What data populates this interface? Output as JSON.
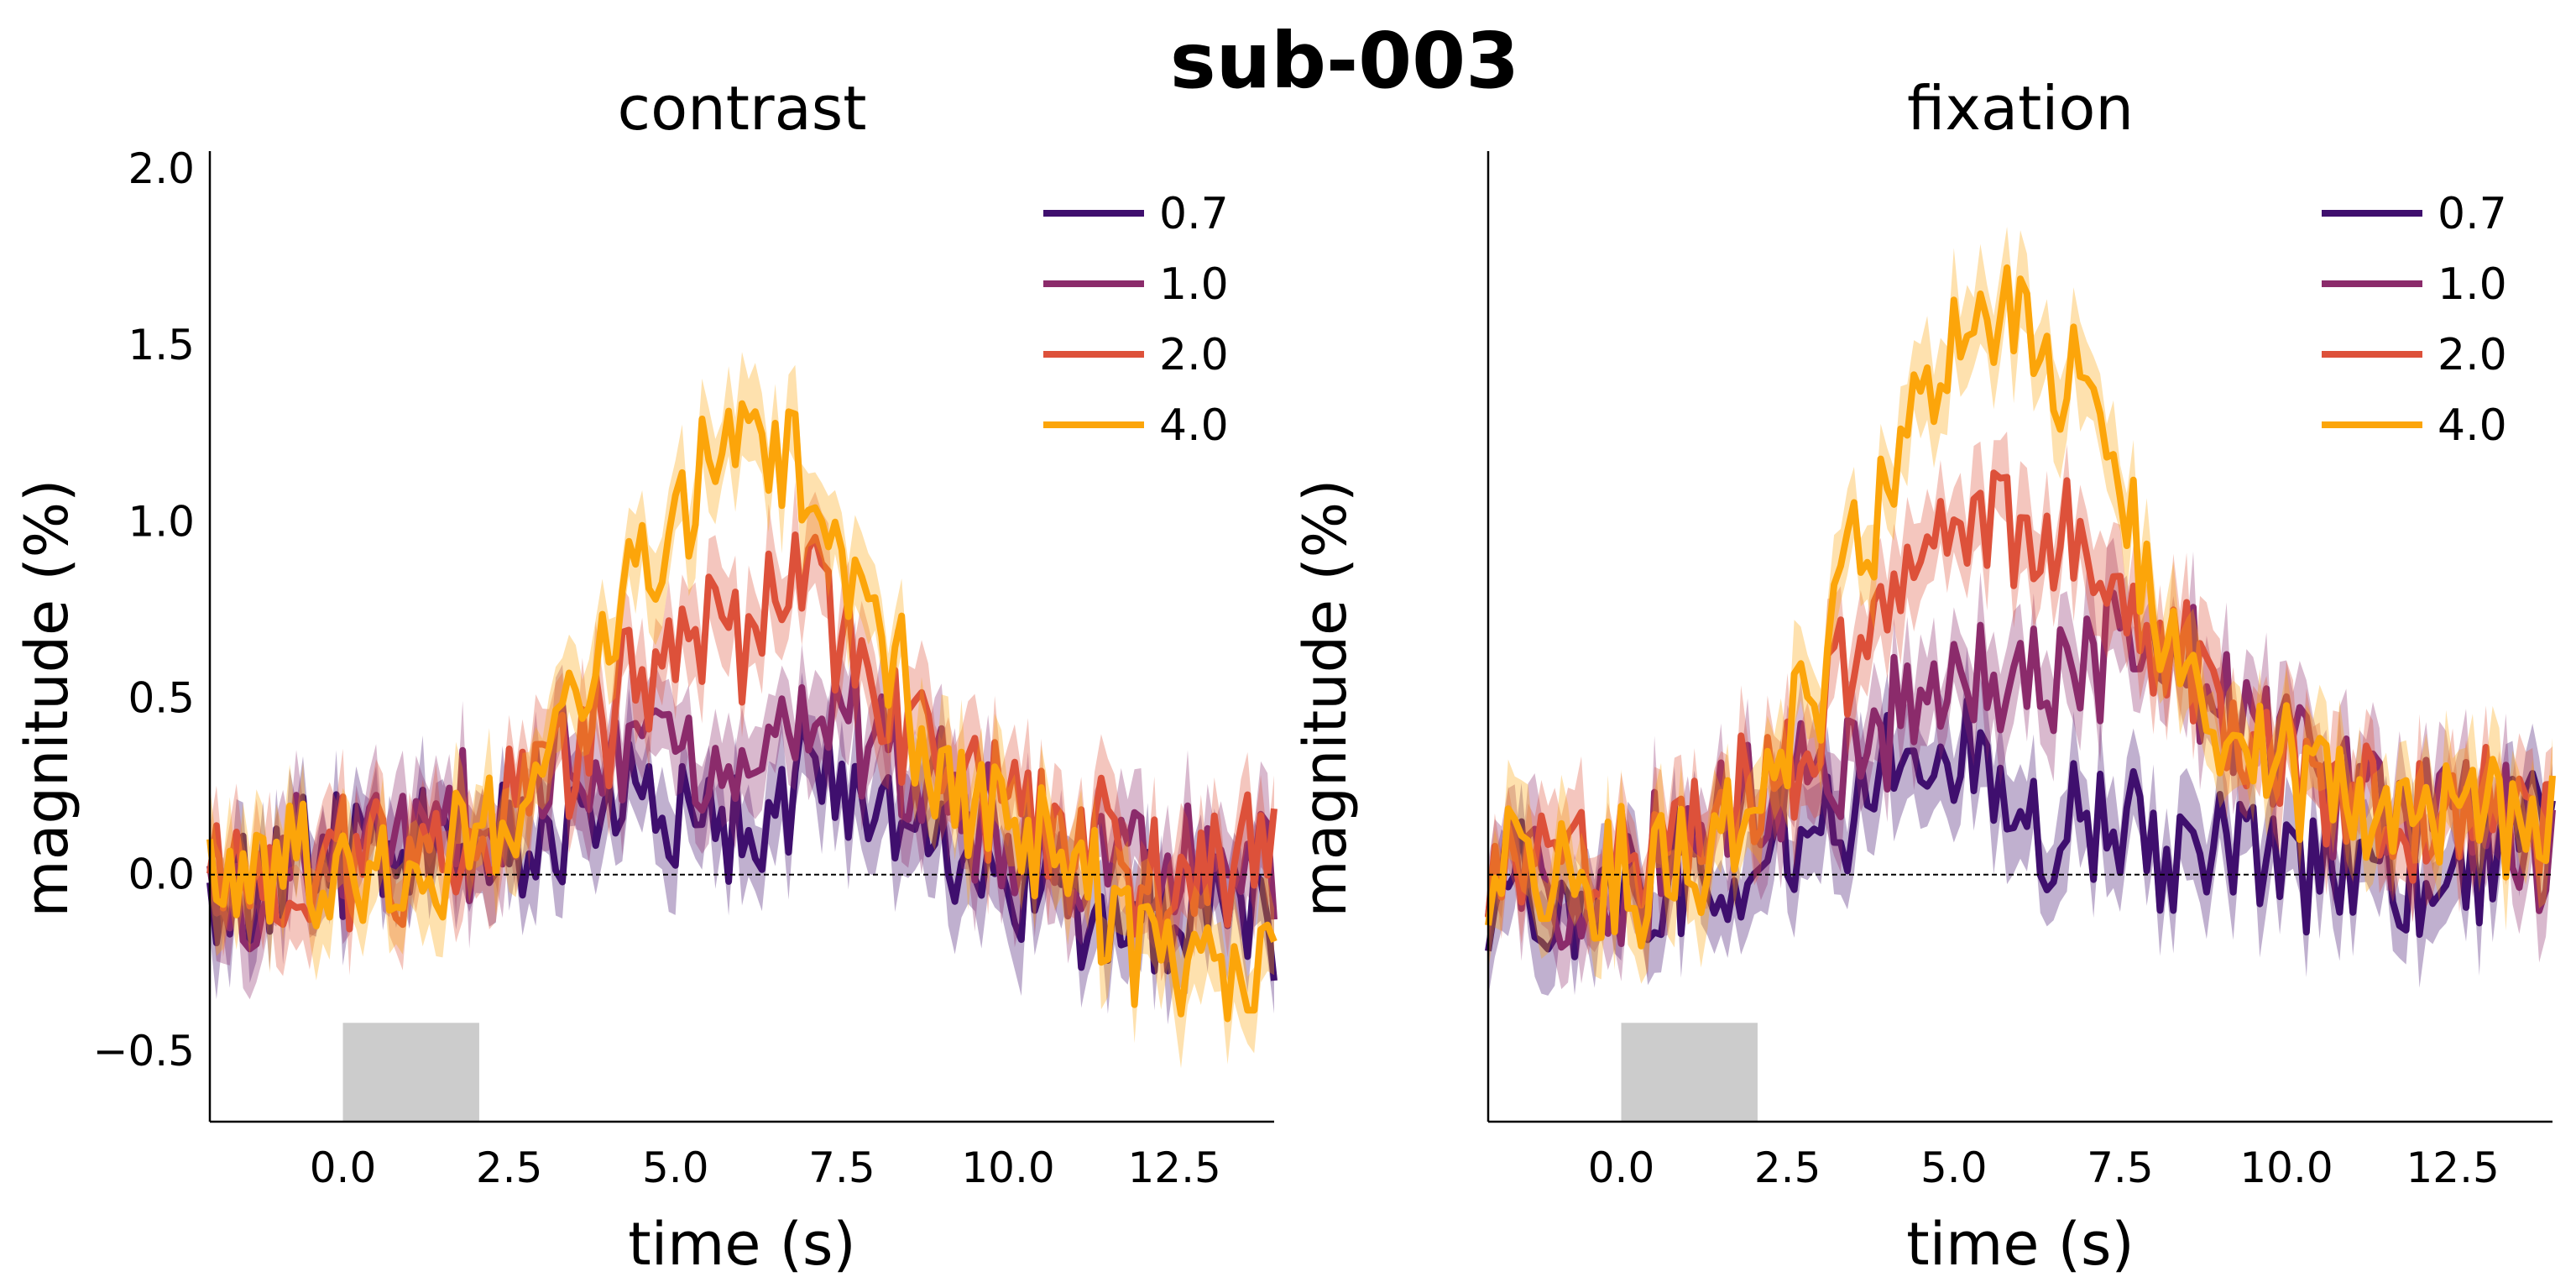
{
  "figure": {
    "title": "sub-003"
  },
  "chart_data": [
    {
      "type": "line",
      "title": "contrast",
      "xlabel": "time (s)",
      "ylabel": "magnitude (%)",
      "xlim": [
        -2.0,
        14.0
      ],
      "ylim": [
        -0.7,
        2.05
      ],
      "xticks": [
        0.0,
        2.5,
        5.0,
        7.5,
        10.0,
        12.5
      ],
      "xtick_labels": [
        "0.0",
        "2.5",
        "5.0",
        "7.5",
        "10.0",
        "12.5"
      ],
      "yticks": [
        -0.5,
        0.0,
        0.5,
        1.0,
        1.5,
        2.0
      ],
      "ytick_labels": [
        "−0.5",
        "0.0",
        "0.5",
        "1.0",
        "1.5",
        "2.0"
      ],
      "show_ytick_labels": true,
      "stimulus_block": [
        0.0,
        2.05
      ],
      "baseline": 0.0,
      "legend_position": "top-right",
      "grid": false,
      "x": [
        -2,
        -1,
        0,
        1,
        2,
        3,
        4,
        5,
        6,
        7,
        8,
        9,
        10,
        11,
        12,
        13,
        14
      ],
      "series": [
        {
          "name": "0.7",
          "color": "#3f0f6e",
          "values": [
            -0.05,
            0.02,
            0.05,
            0.08,
            0.05,
            0.12,
            0.2,
            0.22,
            0.18,
            0.22,
            0.25,
            0.15,
            -0.05,
            -0.1,
            -0.15,
            -0.05,
            -0.15
          ]
        },
        {
          "name": "1.0",
          "color": "#8b2b6b",
          "values": [
            -0.05,
            0.02,
            0.05,
            0.1,
            0.15,
            0.25,
            0.3,
            0.3,
            0.35,
            0.45,
            0.4,
            0.25,
            0.1,
            0.05,
            0.0,
            0.05,
            0.05
          ]
        },
        {
          "name": "2.0",
          "color": "#dd513a",
          "values": [
            0.0,
            0.0,
            0.05,
            0.05,
            0.1,
            0.25,
            0.45,
            0.6,
            0.7,
            0.8,
            0.5,
            0.3,
            0.2,
            0.1,
            0.0,
            0.0,
            0.05
          ]
        },
        {
          "name": "4.0",
          "color": "#fca50a",
          "values": [
            0.05,
            0.0,
            0.0,
            -0.05,
            0.1,
            0.3,
            0.7,
            1.0,
            1.3,
            1.15,
            0.7,
            0.3,
            0.1,
            0.0,
            -0.2,
            -0.25,
            -0.3
          ]
        }
      ]
    },
    {
      "type": "line",
      "title": "fixation",
      "xlabel": "time (s)",
      "ylabel": "magnitude (%)",
      "xlim": [
        -2.0,
        14.0
      ],
      "ylim": [
        -0.7,
        2.05
      ],
      "xticks": [
        0.0,
        2.5,
        5.0,
        7.5,
        10.0,
        12.5
      ],
      "xtick_labels": [
        "0.0",
        "2.5",
        "5.0",
        "7.5",
        "10.0",
        "12.5"
      ],
      "yticks": [
        -0.5,
        0.0,
        0.5,
        1.0,
        1.5,
        2.0
      ],
      "ytick_labels": [],
      "show_ytick_labels": false,
      "stimulus_block": [
        0.0,
        2.05
      ],
      "baseline": 0.0,
      "legend_position": "top-right",
      "grid": false,
      "x": [
        -2,
        -1,
        0,
        1,
        2,
        3,
        4,
        5,
        6,
        7,
        8,
        9,
        10,
        11,
        12,
        13,
        14
      ],
      "series": [
        {
          "name": "0.7",
          "color": "#3f0f6e",
          "values": [
            0.0,
            -0.05,
            -0.05,
            0.0,
            0.05,
            0.15,
            0.3,
            0.35,
            0.2,
            0.15,
            0.1,
            0.05,
            0.0,
            0.0,
            -0.05,
            0.05,
            0.1
          ]
        },
        {
          "name": "1.0",
          "color": "#8b2b6b",
          "values": [
            0.05,
            0.0,
            -0.05,
            0.1,
            0.2,
            0.3,
            0.45,
            0.55,
            0.55,
            0.6,
            0.65,
            0.5,
            0.35,
            0.2,
            0.15,
            0.1,
            0.1
          ]
        },
        {
          "name": "2.0",
          "color": "#dd513a",
          "values": [
            0.0,
            0.0,
            0.05,
            0.1,
            0.2,
            0.4,
            0.8,
            1.0,
            1.0,
            0.9,
            0.7,
            0.45,
            0.3,
            0.2,
            0.15,
            0.2,
            0.2
          ]
        },
        {
          "name": "4.0",
          "color": "#fca50a",
          "values": [
            0.05,
            0.0,
            0.0,
            0.05,
            0.2,
            0.6,
            1.1,
            1.5,
            1.55,
            1.3,
            0.8,
            0.45,
            0.3,
            0.25,
            0.2,
            0.2,
            0.25
          ]
        }
      ]
    }
  ]
}
